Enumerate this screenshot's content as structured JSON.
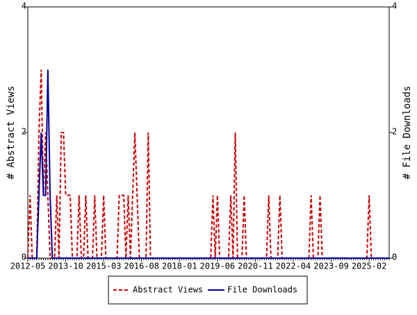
{
  "chart_data": {
    "type": "line",
    "y_label": "# Abstract Views",
    "y2_label": "# File Downloads",
    "categories": [
      "2012-05",
      null,
      null,
      null,
      null,
      null,
      null,
      null,
      null,
      null,
      null,
      null,
      null,
      null,
      null,
      null,
      null,
      "2013-10",
      null,
      null,
      null,
      null,
      null,
      null,
      null,
      null,
      null,
      null,
      null,
      null,
      null,
      null,
      null,
      null,
      "2015-03",
      null,
      null,
      null,
      null,
      null,
      null,
      null,
      null,
      null,
      null,
      null,
      null,
      null,
      null,
      null,
      null,
      "2016-08",
      null,
      null,
      null,
      null,
      null,
      null,
      null,
      null,
      null,
      null,
      null,
      null,
      null,
      null,
      null,
      null,
      "2018-01",
      null,
      null,
      null,
      null,
      null,
      null,
      null,
      null,
      null,
      null,
      null,
      null,
      null,
      null,
      null,
      null,
      "2019-06",
      null,
      null,
      null,
      null,
      null,
      null,
      null,
      null,
      null,
      null,
      null,
      null,
      null,
      null,
      null,
      null,
      "2020-11",
      null,
      null,
      null,
      null,
      null,
      null,
      null,
      null,
      null,
      null,
      null,
      null,
      null,
      null,
      null,
      null,
      "2022-04",
      null,
      null,
      null,
      null,
      null,
      null,
      null,
      null,
      null,
      null,
      null,
      null,
      null,
      null,
      null,
      null,
      "2023-09",
      null,
      null,
      null,
      null,
      null,
      null,
      null,
      null,
      null,
      null,
      null,
      null,
      null,
      null,
      null,
      null,
      "2025-02",
      null,
      null,
      null,
      null,
      null,
      null,
      null,
      null,
      null
    ],
    "series": [
      {
        "name": "Abstract Views",
        "color": "#cc0000",
        "dashed": true,
        "values": [
          0,
          1,
          0,
          0,
          0,
          2,
          3,
          1,
          2,
          1,
          0,
          0,
          0,
          1,
          0,
          2,
          2,
          1,
          1,
          1,
          0,
          0,
          0,
          1,
          0,
          0,
          1,
          0,
          0,
          0,
          1,
          0,
          0,
          0,
          1,
          0,
          0,
          0,
          0,
          0,
          0,
          1,
          1,
          1,
          0,
          1,
          0,
          1,
          2,
          1,
          0,
          0,
          0,
          0,
          2,
          0,
          0,
          0,
          0,
          0,
          0,
          0,
          0,
          0,
          0,
          0,
          0,
          0,
          0,
          0,
          0,
          0,
          0,
          0,
          0,
          0,
          0,
          0,
          0,
          0,
          0,
          0,
          0,
          1,
          0,
          1,
          0,
          0,
          0,
          0,
          0,
          1,
          0,
          2,
          0,
          0,
          0,
          1,
          0,
          0,
          0,
          0,
          0,
          0,
          0,
          0,
          0,
          0,
          1,
          0,
          0,
          0,
          0,
          1,
          0,
          0,
          0,
          0,
          0,
          0,
          0,
          0,
          0,
          0,
          0,
          0,
          0,
          1,
          0,
          0,
          0,
          1,
          0,
          0,
          0,
          0,
          0,
          0,
          0,
          0,
          0,
          0,
          0,
          0,
          0,
          0,
          0,
          0,
          0,
          0,
          0,
          0,
          0,
          1,
          0,
          0,
          0,
          0,
          0,
          0,
          0,
          0,
          0
        ]
      },
      {
        "name": "File Downloads",
        "color": "#000099",
        "dashed": false,
        "axis": "y2",
        "values": [
          0,
          0,
          0,
          0,
          0,
          1,
          2,
          1,
          1,
          3,
          1,
          0,
          0,
          0,
          0,
          0,
          0,
          0,
          0,
          0,
          0,
          0,
          0,
          0,
          0,
          0,
          0,
          0,
          0,
          0,
          0,
          0,
          0,
          0,
          0,
          0,
          0,
          0,
          0,
          0,
          0,
          0,
          0,
          0,
          0,
          0,
          0,
          0,
          0,
          0,
          0,
          0,
          0,
          0,
          0,
          0,
          0,
          0,
          0,
          0,
          0,
          0,
          0,
          0,
          0,
          0,
          0,
          0,
          0,
          0,
          0,
          0,
          0,
          0,
          0,
          0,
          0,
          0,
          0,
          0,
          0,
          0,
          0,
          0,
          0,
          0,
          0,
          0,
          0,
          0,
          0,
          0,
          0,
          0,
          0,
          0,
          0,
          0,
          0,
          0,
          0,
          0,
          0,
          0,
          0,
          0,
          0,
          0,
          0,
          0,
          0,
          0,
          0,
          0,
          0,
          0,
          0,
          0,
          0,
          0,
          0,
          0,
          0,
          0,
          0,
          0,
          0,
          0,
          0,
          0,
          0,
          0,
          0,
          0,
          0,
          0,
          0,
          0,
          0,
          0,
          0,
          0,
          0,
          0,
          0,
          0,
          0,
          0,
          0,
          0,
          0,
          0,
          0,
          0,
          0,
          0,
          0,
          0,
          0,
          0,
          0,
          0,
          0
        ]
      }
    ],
    "ylim": [
      0,
      4
    ],
    "yticks": [
      0,
      2,
      4
    ],
    "y2lim": [
      0,
      4
    ],
    "y2ticks": [
      0,
      2,
      4
    ]
  }
}
